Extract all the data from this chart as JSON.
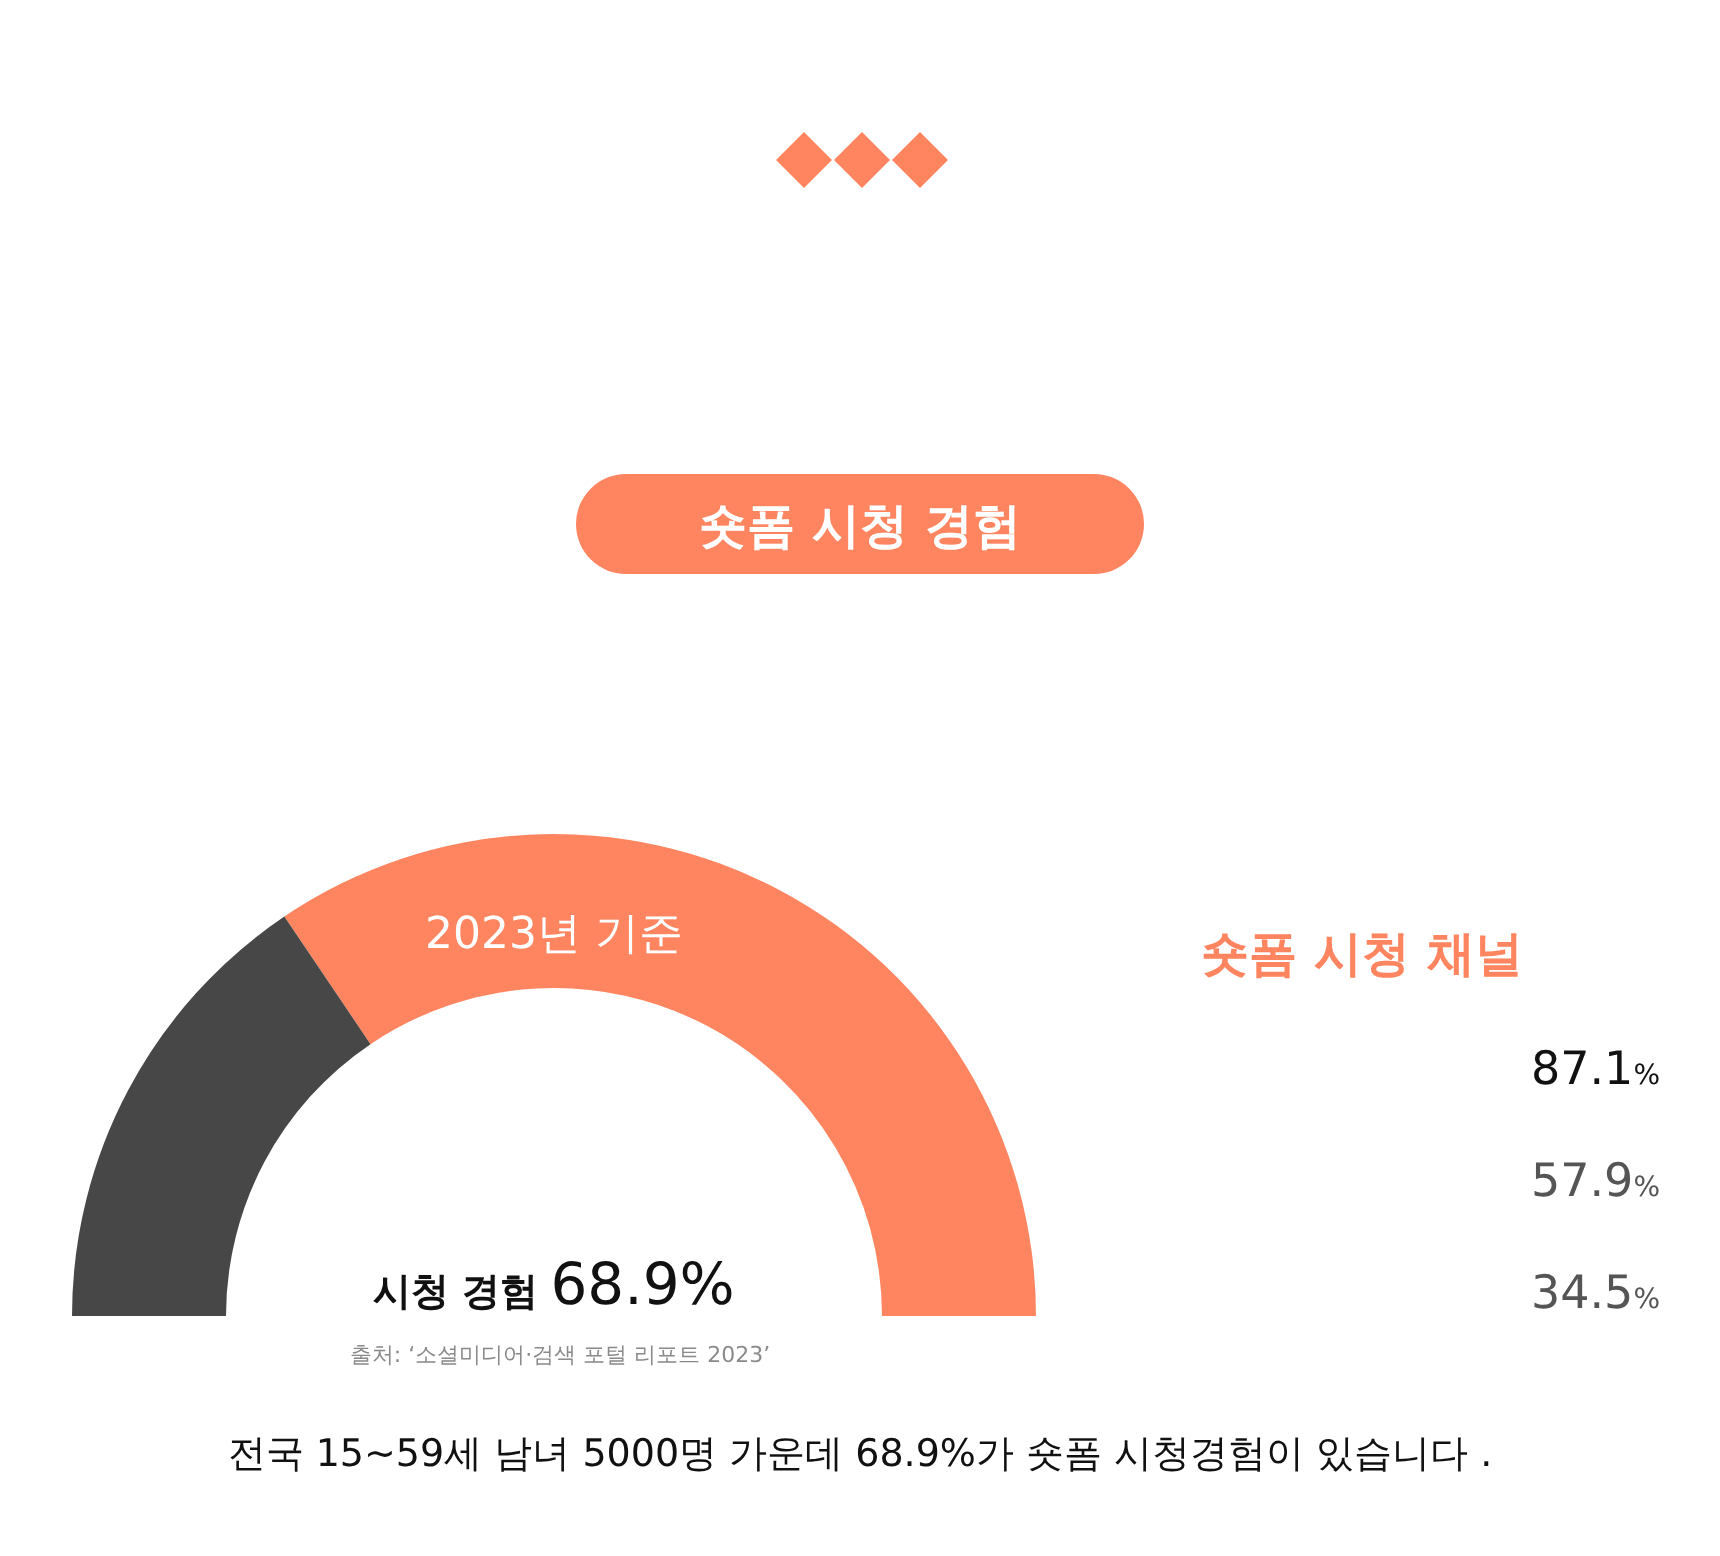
{
  "chart_data": [
    {
      "type": "donut",
      "title": "숏폼 시청 경험",
      "categories": [
        "시청 경험",
        null
      ],
      "values": [
        68.9,
        31.1
      ],
      "colors": [
        "#ff8560",
        "#474747"
      ],
      "value_labels": [
        "68.9%",
        null
      ],
      "annotations": [
        "2023년 기준",
        "출처: ‘소셜미디어·검색 포털 리포트 2023’",
        "전국 15~59세 남녀 5000명 가운데 68.9%가 숏폼 시청경험이 있습니다 ."
      ]
    },
    {
      "type": "other",
      "title": "숏폼 시청 채널",
      "categories": [
        null,
        null,
        null
      ],
      "values": [
        87.1,
        57.9,
        34.5
      ],
      "value_labels": [
        "87.1%",
        "57.9%",
        "34.5%"
      ],
      "colors": [
        "#111111",
        "#555555",
        "#555555"
      ]
    }
  ]
}
